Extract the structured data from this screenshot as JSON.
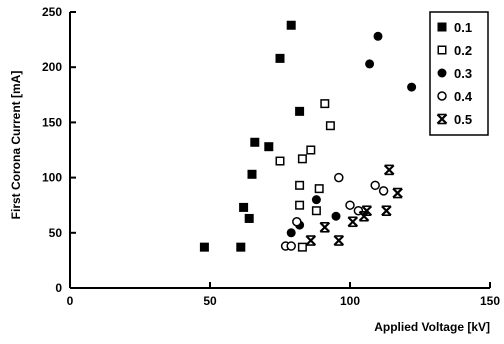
{
  "chart_data": {
    "type": "scatter",
    "title": "",
    "xlabel": "Applied Voltage [kV]",
    "ylabel": "First Corona Current [mA]",
    "xlim": [
      0,
      150
    ],
    "ylim": [
      0,
      250
    ],
    "xticks": [
      "0",
      "50",
      "100",
      "150"
    ],
    "yticks": [
      "0",
      "50",
      "100",
      "150",
      "200",
      "250"
    ],
    "grid": false,
    "legend_position": "top-right",
    "series": [
      {
        "name": "0.1",
        "marker": "filled-square",
        "points": [
          [
            48,
            37
          ],
          [
            61,
            37
          ],
          [
            62,
            73
          ],
          [
            64,
            63
          ],
          [
            65,
            103
          ],
          [
            66,
            132
          ],
          [
            71,
            128
          ],
          [
            75,
            208
          ],
          [
            79,
            238
          ],
          [
            82,
            160
          ]
        ]
      },
      {
        "name": "0.2",
        "marker": "open-square",
        "points": [
          [
            75,
            115
          ],
          [
            82,
            93
          ],
          [
            82,
            75
          ],
          [
            83,
            117
          ],
          [
            83,
            37
          ],
          [
            86,
            125
          ],
          [
            88,
            70
          ],
          [
            89,
            90
          ],
          [
            91,
            167
          ],
          [
            93,
            147
          ]
        ]
      },
      {
        "name": "0.3",
        "marker": "filled-circle",
        "points": [
          [
            79,
            50
          ],
          [
            82,
            57
          ],
          [
            88,
            80
          ],
          [
            95,
            65
          ],
          [
            107,
            203
          ],
          [
            110,
            228
          ],
          [
            122,
            182
          ]
        ]
      },
      {
        "name": "0.4",
        "marker": "open-circle",
        "points": [
          [
            77,
            38
          ],
          [
            79,
            38
          ],
          [
            81,
            60
          ],
          [
            96,
            100
          ],
          [
            100,
            75
          ],
          [
            103,
            70
          ],
          [
            109,
            93
          ],
          [
            112,
            88
          ]
        ]
      },
      {
        "name": "0.5",
        "marker": "x-star",
        "points": [
          [
            86,
            43
          ],
          [
            91,
            55
          ],
          [
            96,
            43
          ],
          [
            101,
            60
          ],
          [
            105,
            65
          ],
          [
            106,
            70
          ],
          [
            113,
            70
          ],
          [
            114,
            107
          ],
          [
            117,
            86
          ]
        ]
      }
    ]
  }
}
